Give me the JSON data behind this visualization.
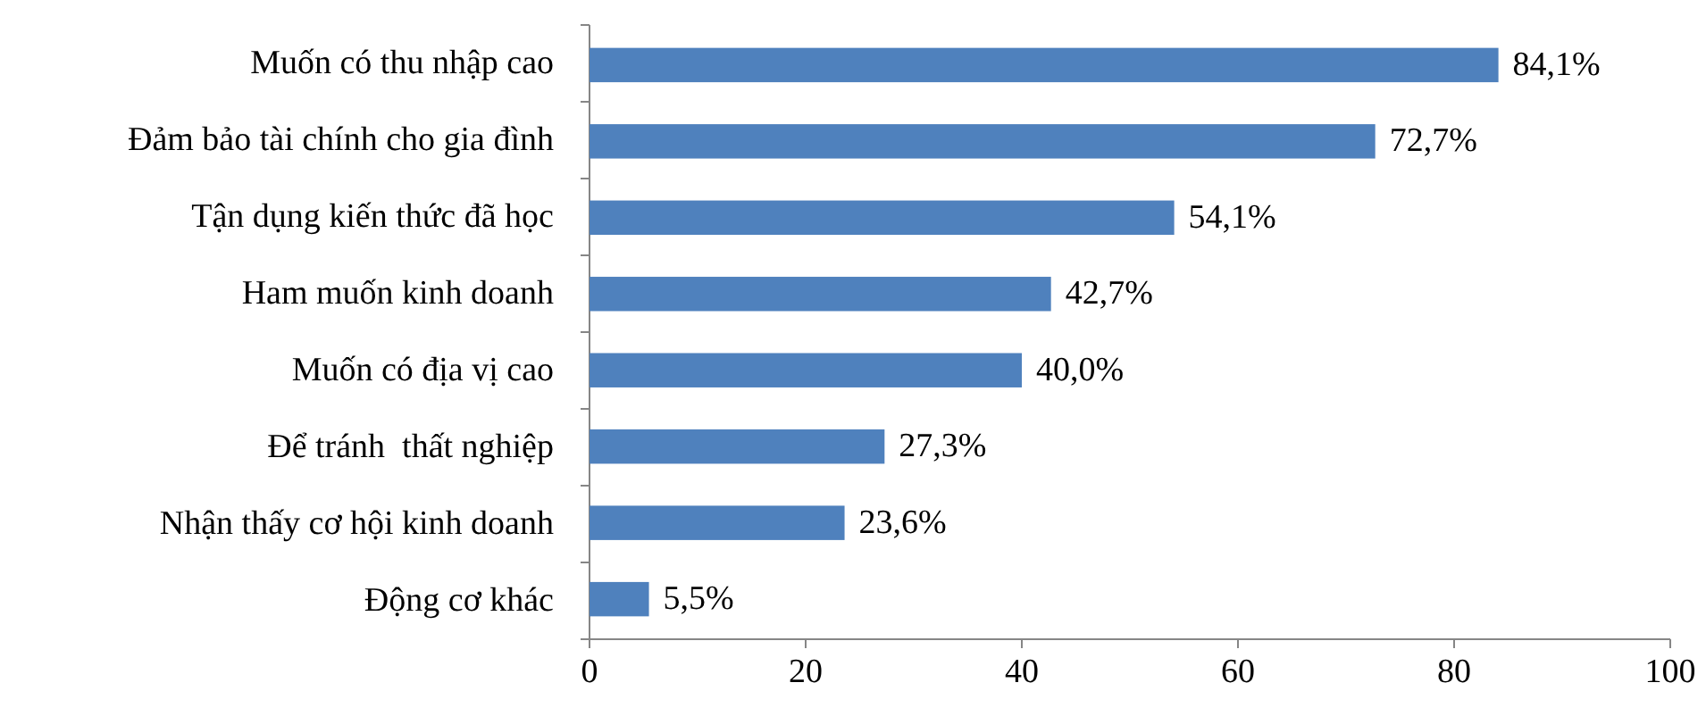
{
  "chart_data": {
    "type": "bar",
    "orientation": "horizontal",
    "categories": [
      "Muốn có thu nhập cao",
      "Đảm bảo tài chính cho gia đình",
      "Tận dụng kiến thức đã học",
      "Ham muốn kinh doanh",
      "Muốn có địa vị cao",
      "Để tránh  thất nghiệp",
      "Nhận thấy cơ hội kinh doanh",
      "Động cơ khác"
    ],
    "values": [
      84.1,
      72.7,
      54.1,
      42.7,
      40.0,
      27.3,
      23.6,
      5.5
    ],
    "value_labels": [
      "84,1%",
      "72,7%",
      "54,1%",
      "42,7%",
      "40,0%",
      "27,3%",
      "23,6%",
      "5,5%"
    ],
    "color": "#4f81bd",
    "xlim": [
      0,
      100
    ],
    "xticks": [
      0,
      20,
      40,
      60,
      80,
      100
    ],
    "grid": false
  }
}
